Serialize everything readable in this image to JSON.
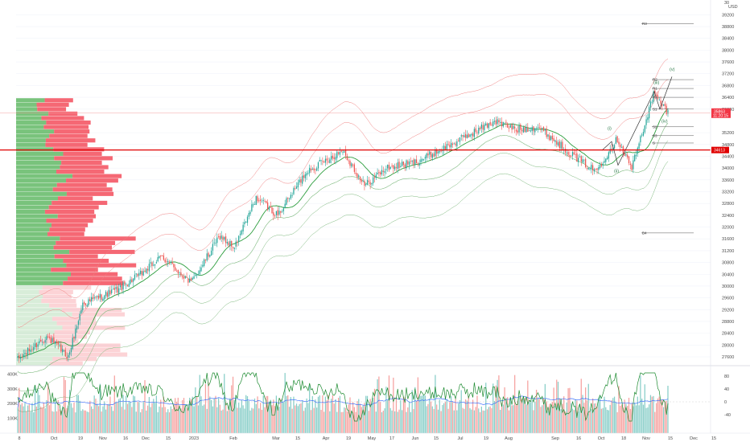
{
  "chart_data": {
    "type": "candlestick",
    "colors": {
      "up": "#26a69a",
      "down": "#ef5350",
      "profile_up": "#4caf50",
      "profile_down": "#f23645",
      "band_upper": "#f08080",
      "band_lower": "#7cb87c",
      "band_mid": "#2e9e3f",
      "poc_line": "#e00000",
      "current_line": "#f5a0a0",
      "volume_ma": "#2962ff",
      "oscillator_up": "#1b8a2f",
      "oscillator_down": "#d32f2f",
      "grid": "#f0f3fa"
    },
    "price_axis": {
      "ylim": [
        27300,
        39700
      ],
      "ticks": [
        "39200",
        "38800",
        "38400",
        "38000",
        "37600",
        "37200",
        "36800",
        "36400",
        "36000",
        "35200",
        "34800",
        "34400",
        "34000",
        "33600",
        "33200",
        "32800",
        "32400",
        "32000",
        "31600",
        "31200",
        "30800",
        "30400",
        "30000",
        "29600",
        "29200",
        "28800",
        "28400",
        "28000",
        "27600"
      ],
      "top_labels": [
        "30",
        "USD"
      ],
      "last_price_label": "35863",
      "last_price_sublabel": "11:20:15",
      "last_price": 35863,
      "poc_label": "34613",
      "poc_price": 34613
    },
    "time_axis": {
      "labels": [
        "8",
        "Oct",
        "19",
        "Nov",
        "16",
        "Dec",
        "15",
        "2023",
        "Feb",
        "Mar",
        "15",
        "Apr",
        "19",
        "May",
        "17",
        "Jun",
        "15",
        "Jul",
        "19",
        "Aug",
        "Sep",
        "16",
        "Oct",
        "18",
        "Nov",
        "15",
        "Dec",
        "15"
      ]
    },
    "pivot_levels": [
      {
        "label": "R3",
        "price": 38900
      },
      {
        "label": "R2",
        "price": 37000
      },
      {
        "label": "R1",
        "price": 36700
      },
      {
        "label": "P",
        "price": 36400
      },
      {
        "label": "S1",
        "price": 36000
      },
      {
        "label": "S2",
        "price": 35400
      },
      {
        "label": "S3",
        "price": 35100
      },
      {
        "label": "S",
        "price": 34850
      },
      {
        "label": "B4",
        "price": 31800
      }
    ],
    "wave_labels": [
      "(i)",
      "(ii)",
      "(iii)",
      "(iv)",
      "(v)"
    ],
    "volume_panel": {
      "ticks": [
        "400K",
        "300K",
        "200K",
        "100K",
        "0"
      ],
      "oscillator_ticks": [
        "80",
        "40",
        "0",
        "-40"
      ]
    },
    "series": [
      {
        "name": "close",
        "x_start": "2022-09-01",
        "x_end": "2023-11-20",
        "anchors": [
          [
            0,
            27500
          ],
          [
            20,
            28300
          ],
          [
            35,
            27600
          ],
          [
            45,
            29400
          ],
          [
            70,
            29900
          ],
          [
            85,
            30400
          ],
          [
            100,
            31000
          ],
          [
            120,
            30100
          ],
          [
            140,
            31700
          ],
          [
            150,
            31300
          ],
          [
            165,
            33000
          ],
          [
            180,
            32400
          ],
          [
            200,
            33900
          ],
          [
            225,
            34600
          ],
          [
            240,
            33400
          ],
          [
            255,
            34000
          ],
          [
            275,
            34200
          ],
          [
            300,
            34800
          ],
          [
            330,
            35600
          ],
          [
            345,
            35300
          ],
          [
            360,
            35400
          ],
          [
            385,
            34400
          ],
          [
            400,
            33900
          ],
          [
            415,
            35000
          ],
          [
            425,
            34000
          ],
          [
            440,
            36500
          ],
          [
            450,
            35900
          ]
        ]
      }
    ]
  }
}
